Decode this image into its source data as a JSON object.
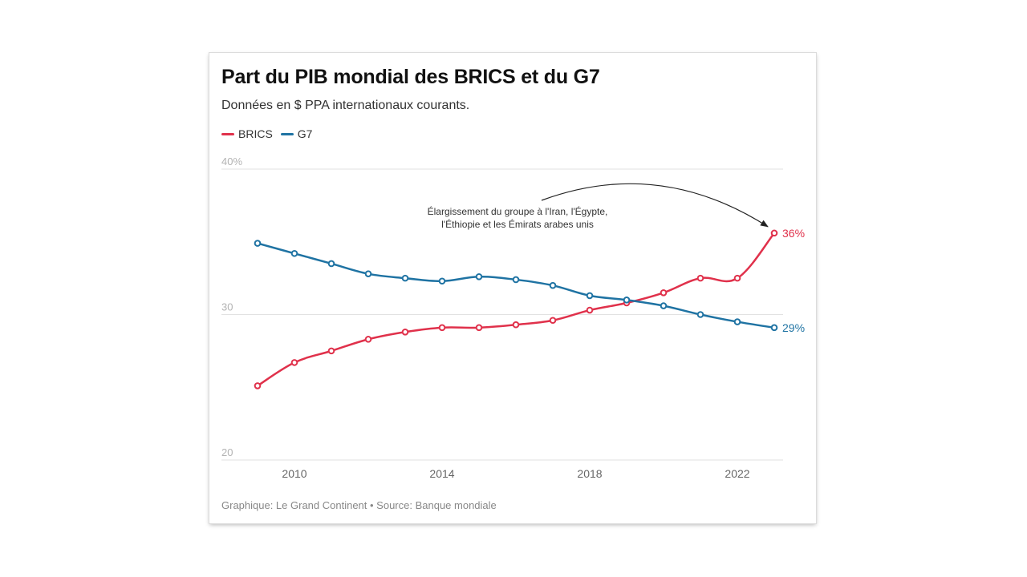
{
  "header": {
    "title": "Part du PIB mondial des BRICS et du G7",
    "subtitle": "Données en $ PPA internationaux courants."
  },
  "footer": {
    "text": "Graphique: Le Grand Continent • Source: Banque mondiale"
  },
  "chart_data": {
    "type": "line",
    "x": [
      2009,
      2010,
      2011,
      2012,
      2013,
      2014,
      2015,
      2016,
      2017,
      2018,
      2019,
      2020,
      2021,
      2022,
      2023
    ],
    "series": [
      {
        "name": "BRICS",
        "color": "#e0314b",
        "values": [
          25.1,
          26.7,
          27.5,
          28.3,
          28.8,
          29.1,
          29.1,
          29.3,
          29.6,
          30.3,
          30.8,
          31.5,
          32.5,
          32.5,
          35.6
        ],
        "end_label": "36%"
      },
      {
        "name": "G7",
        "color": "#1f73a3",
        "values": [
          34.9,
          34.2,
          33.5,
          32.8,
          32.5,
          32.3,
          32.6,
          32.4,
          32.0,
          31.3,
          31.0,
          30.6,
          30.0,
          29.5,
          29.1
        ],
        "end_label": "29%"
      }
    ],
    "xticks": [
      2010,
      2014,
      2018,
      2022
    ],
    "yticks": [
      {
        "value": 20,
        "label": "20"
      },
      {
        "value": 30,
        "label": "30"
      },
      {
        "value": 40,
        "label": "40%"
      }
    ],
    "ylim": [
      20,
      40
    ],
    "xlim": [
      2009,
      2023
    ],
    "grid": "horizontal",
    "legend_position": "top-left",
    "annotation": {
      "lines": [
        "Élargissement du groupe à l'Iran, l'Égypte,",
        "l'Éthiopie et les Émirats arabes unis"
      ],
      "target": {
        "series": "BRICS",
        "x": 2023
      }
    }
  }
}
